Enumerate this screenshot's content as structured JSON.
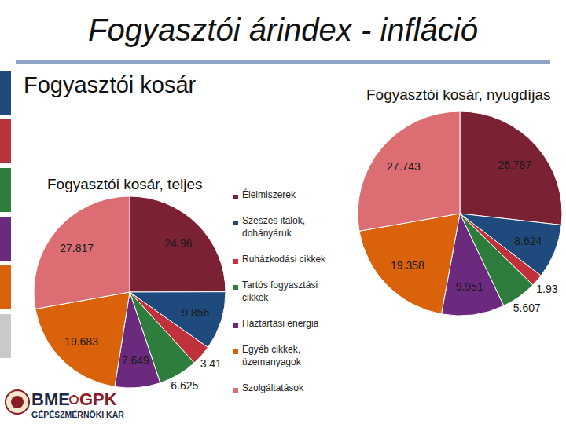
{
  "title": "Fogyasztói árindex - infláció",
  "subtitle": "Fogyasztói kosár",
  "logo": {
    "text": "BME",
    "text2": "GPK",
    "sub": "GÉPÉSZMÉRNÖKI KAR"
  },
  "chart_data": [
    {
      "type": "pie",
      "title": "Fogyasztói kosár, teljes",
      "categories": [
        "Élelmiszerek",
        "Szeszes italok, dohányáruk",
        "Ruházkodási cikkek",
        "Tartós fogyasztási cikkek",
        "Háztartási energia",
        "Egyéb cikkek, üzemanyagok",
        "Szolgáltatások"
      ],
      "values": [
        24.96,
        9.856,
        3.41,
        6.625,
        7.649,
        19.683,
        27.817
      ],
      "colors": [
        "#7b2134",
        "#1f4a7d",
        "#c0313c",
        "#2f7d3c",
        "#6b2a7e",
        "#d9620b",
        "#db6d73"
      ],
      "legend": "right",
      "data_labels": true
    },
    {
      "type": "pie",
      "title": "Fogyasztói kosár, nyugdíjas",
      "values": [
        26.787,
        8.624,
        1.93,
        5.607,
        9.951,
        19.358,
        27.743
      ],
      "colors": [
        "#7b2134",
        "#1f4a7d",
        "#c0313c",
        "#2f7d3c",
        "#6b2a7e",
        "#d9620b",
        "#db6d73"
      ],
      "data_labels": true
    }
  ]
}
